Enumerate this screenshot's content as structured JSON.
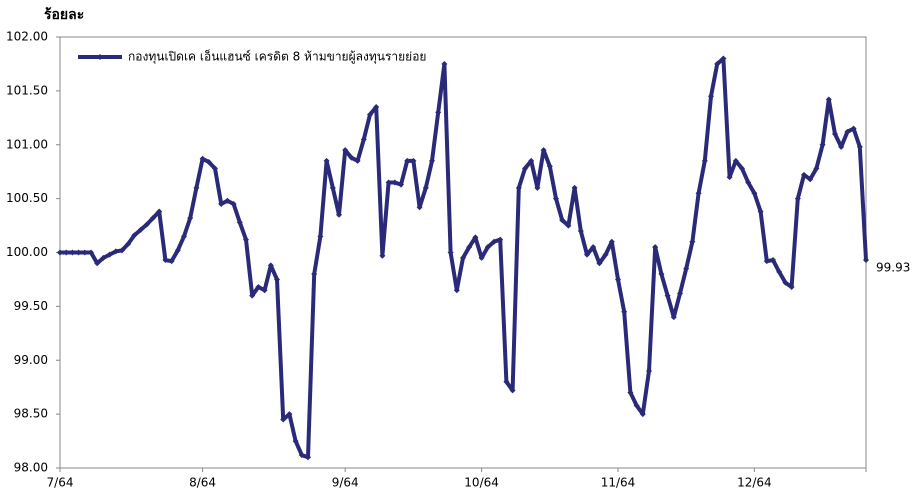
{
  "chart_data": {
    "type": "line",
    "ylabel": "ร้อยละ",
    "categories": [
      "7/64",
      null,
      null,
      null,
      null,
      null,
      null,
      null,
      null,
      null,
      null,
      null,
      null,
      null,
      null,
      null,
      null,
      null,
      null,
      null,
      null,
      null,
      null,
      "8/64",
      null,
      null,
      null,
      null,
      null,
      null,
      null,
      null,
      null,
      null,
      null,
      null,
      null,
      null,
      null,
      null,
      null,
      null,
      null,
      null,
      null,
      null,
      "9/64",
      null,
      null,
      null,
      null,
      null,
      null,
      null,
      null,
      null,
      null,
      null,
      null,
      null,
      null,
      null,
      null,
      null,
      null,
      null,
      null,
      null,
      "10/64",
      null,
      null,
      null,
      null,
      null,
      null,
      null,
      null,
      null,
      null,
      null,
      null,
      null,
      null,
      null,
      null,
      null,
      null,
      null,
      null,
      null,
      "11/64",
      null,
      null,
      null,
      null,
      null,
      null,
      null,
      null,
      null,
      null,
      null,
      null,
      null,
      null,
      null,
      null,
      null,
      null,
      null,
      null,
      null,
      "12/64",
      null,
      null,
      null,
      null,
      null,
      null,
      null,
      null,
      null,
      null,
      null,
      null,
      null,
      null,
      null,
      null,
      null,
      null
    ],
    "series": [
      {
        "name": "กองทุนเปิดเค เอ็นแฮนซ์ เครดิต 8 ห้ามขายผู้ลงทุนรายย่อย",
        "color": "#2b2a78",
        "values": [
          100.0,
          100.0,
          100.0,
          100.0,
          100.0,
          100.0,
          99.9,
          99.95,
          99.98,
          100.01,
          100.02,
          100.08,
          100.16,
          100.21,
          100.26,
          100.32,
          100.38,
          99.93,
          99.92,
          100.02,
          100.15,
          100.32,
          100.6,
          100.87,
          100.84,
          100.78,
          100.45,
          100.48,
          100.45,
          100.28,
          100.12,
          99.6,
          99.68,
          99.65,
          99.88,
          99.75,
          98.45,
          98.5,
          98.25,
          98.12,
          98.1,
          99.8,
          100.15,
          100.85,
          100.6,
          100.35,
          100.95,
          100.88,
          100.85,
          101.05,
          101.28,
          101.35,
          99.97,
          100.65,
          100.65,
          100.63,
          100.85,
          100.85,
          100.42,
          100.6,
          100.85,
          101.3,
          101.75,
          100.0,
          99.65,
          99.95,
          100.05,
          100.14,
          99.95,
          100.05,
          100.1,
          100.12,
          98.8,
          98.72,
          100.6,
          100.78,
          100.85,
          100.6,
          100.95,
          100.8,
          100.5,
          100.3,
          100.25,
          100.6,
          100.2,
          99.98,
          100.05,
          99.9,
          99.98,
          100.1,
          99.75,
          99.45,
          98.7,
          98.58,
          98.5,
          98.9,
          100.05,
          99.8,
          99.6,
          99.4,
          99.62,
          99.85,
          100.1,
          100.55,
          100.85,
          101.45,
          101.75,
          101.8,
          100.7,
          100.85,
          100.78,
          100.65,
          100.55,
          100.38,
          99.92,
          99.93,
          99.82,
          99.72,
          99.68,
          100.5,
          100.72,
          100.68,
          100.78,
          101.0,
          101.42,
          101.1,
          100.98,
          101.12,
          101.15,
          100.98,
          99.93
        ]
      }
    ],
    "ylim": [
      98,
      102
    ],
    "yticks": [
      {
        "value": 98,
        "label": "98.00"
      },
      {
        "value": 98.5,
        "label": "98.50"
      },
      {
        "value": 99,
        "label": "99.00"
      },
      {
        "value": 99.5,
        "label": "99.50"
      },
      {
        "value": 100,
        "label": "100.00"
      },
      {
        "value": 100.5,
        "label": "100.50"
      },
      {
        "value": 101,
        "label": "101.00"
      },
      {
        "value": 101.5,
        "label": "101.50"
      },
      {
        "value": 102,
        "label": "102.00"
      }
    ],
    "grid": false,
    "legend": "top-left"
  }
}
